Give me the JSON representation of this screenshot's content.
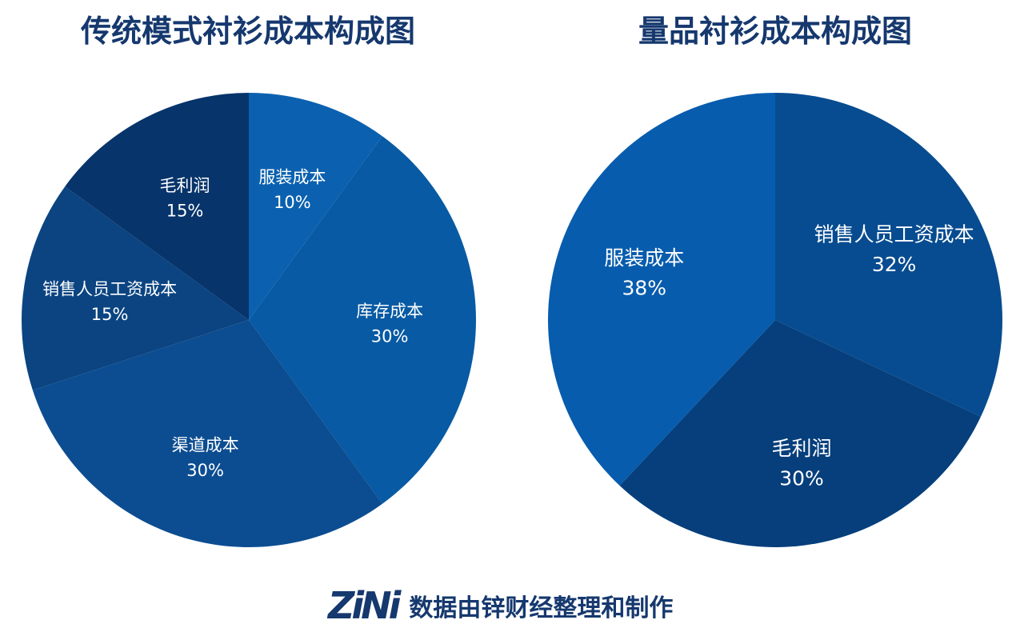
{
  "footer": {
    "logo": "ZiNi",
    "credit": "数据由锌财经整理和制作"
  },
  "colors": {
    "title": "#15386e",
    "label": "#ffffff"
  },
  "chart_data": [
    {
      "type": "pie",
      "title": "传统模式衬衫成本构成图",
      "slices": [
        {
          "label": "服装成本",
          "value": 10,
          "color": "#0b61af"
        },
        {
          "label": "库存成本",
          "value": 30,
          "color": "#075aa3"
        },
        {
          "label": "渠道成本",
          "value": 30,
          "color": "#0c4d91"
        },
        {
          "label": "销售人员工资成本",
          "value": 15,
          "color": "#0b4481"
        },
        {
          "label": "毛利润",
          "value": 15,
          "color": "#07346a"
        }
      ],
      "data_labels": [
        "10%",
        "30%",
        "30%",
        "15%",
        "15%"
      ]
    },
    {
      "type": "pie",
      "title": "量品衬衫成本构成图",
      "slices": [
        {
          "label": "销售人员工资成本",
          "value": 32,
          "color": "#074c90"
        },
        {
          "label": "毛利润",
          "value": 30,
          "color": "#063f7c"
        },
        {
          "label": "服装成本",
          "value": 38,
          "color": "#075cad"
        }
      ],
      "data_labels": [
        "32%",
        "30%",
        "38%"
      ]
    }
  ]
}
